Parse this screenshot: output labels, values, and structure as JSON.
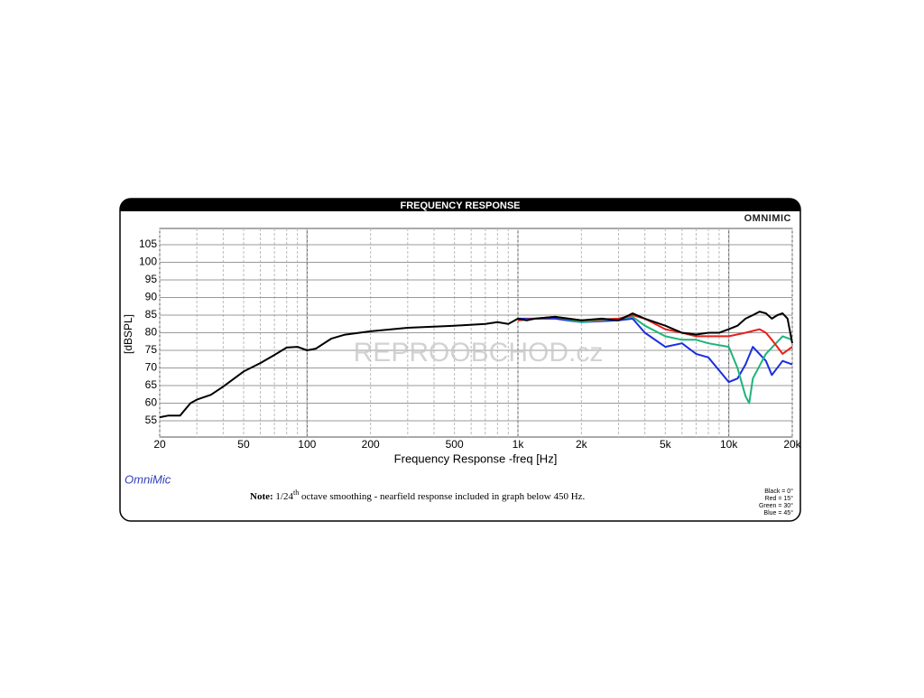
{
  "chart_data": {
    "type": "line",
    "title": "FREQUENCY RESPONSE",
    "logo": "OMNIMIC",
    "brand": "OmniMic",
    "watermark": "REPROOBCHOD.cz",
    "x_label": "Frequency Response -freq [Hz]",
    "y_label": "[dBSPL]",
    "note": {
      "prefix": "Note:",
      "text": "1/24",
      "sup": "th",
      "rest": " octave smoothing - nearfield response included in graph below 450 Hz."
    },
    "log_x": true,
    "grid": true,
    "xlim": [
      20,
      20000
    ],
    "ylim": [
      50.4,
      109.6
    ],
    "xticks": [
      20,
      50,
      100,
      200,
      500,
      {
        "value": 1000,
        "label": "1k"
      },
      {
        "value": 2000,
        "label": "2k"
      },
      {
        "value": 5000,
        "label": "5k"
      },
      {
        "value": 10000,
        "label": "10k"
      },
      {
        "value": 20000,
        "label": "20k"
      }
    ],
    "x_major_grid": [
      100,
      1000,
      10000
    ],
    "x_minor_grid": [
      30,
      40,
      60,
      70,
      80,
      90,
      300,
      400,
      600,
      700,
      800,
      900,
      3000,
      4000,
      6000,
      7000,
      8000,
      9000
    ],
    "yticks": [
      55,
      60,
      65,
      70,
      75,
      80,
      85,
      90,
      95,
      100,
      105
    ],
    "legend": "bottom-right",
    "series": [
      {
        "name": "Black = 0°",
        "color": "#000000",
        "x": [
          20,
          22,
          25,
          28,
          30,
          35,
          40,
          50,
          60,
          70,
          80,
          90,
          100,
          110,
          130,
          150,
          200,
          300,
          500,
          700,
          800,
          900,
          1000,
          1100,
          1200,
          1500,
          2000,
          2500,
          3000,
          3500,
          4000,
          5000,
          6000,
          7000,
          8000,
          9000,
          10000,
          11000,
          12000,
          13000,
          14000,
          15000,
          16000,
          17000,
          18000,
          19000,
          20000
        ],
        "values": [
          56,
          56.5,
          56.5,
          60,
          61,
          62.4,
          64.7,
          69,
          71.4,
          73.7,
          75.8,
          76,
          75,
          75.5,
          78.3,
          79.4,
          80.4,
          81.4,
          82,
          82.5,
          83,
          82.5,
          84,
          83.5,
          84,
          84.5,
          83.5,
          84,
          83.5,
          85.5,
          84,
          82,
          80,
          79.5,
          80,
          80,
          81,
          82,
          84,
          85,
          86,
          85.5,
          84,
          85,
          85.5,
          84,
          77
        ]
      },
      {
        "name": "Red = 15°",
        "color": "#e8201a",
        "x": [
          1000,
          1500,
          2000,
          3000,
          3500,
          4000,
          5000,
          6000,
          7000,
          8000,
          10000,
          12000,
          14000,
          15000,
          16000,
          18000,
          20000
        ],
        "values": [
          83.5,
          84.5,
          83.5,
          84,
          85,
          84,
          81,
          80,
          79,
          79,
          79,
          80,
          81,
          80,
          78,
          74,
          76
        ]
      },
      {
        "name": "Green = 30°",
        "color": "#1db47a",
        "x": [
          1000,
          1500,
          2000,
          3000,
          3500,
          4000,
          5000,
          6000,
          7000,
          8000,
          10000,
          11000,
          12000,
          12500,
          13000,
          15000,
          18000,
          20000
        ],
        "values": [
          83.5,
          84.5,
          83,
          84,
          84.5,
          82,
          79,
          78,
          78,
          77,
          76,
          70,
          62,
          60,
          67,
          74,
          79,
          78
        ]
      },
      {
        "name": "Blue = 45°",
        "color": "#1a2ee0",
        "x": [
          1000,
          1500,
          2000,
          3000,
          3500,
          4000,
          5000,
          6000,
          7000,
          8000,
          10000,
          11000,
          12000,
          13000,
          15000,
          16000,
          18000,
          19000,
          20000
        ],
        "values": [
          84,
          84,
          83,
          83.5,
          84,
          80,
          76,
          77,
          74,
          73,
          66,
          67,
          71,
          76,
          72,
          68,
          72,
          71.5,
          71
        ]
      }
    ]
  }
}
